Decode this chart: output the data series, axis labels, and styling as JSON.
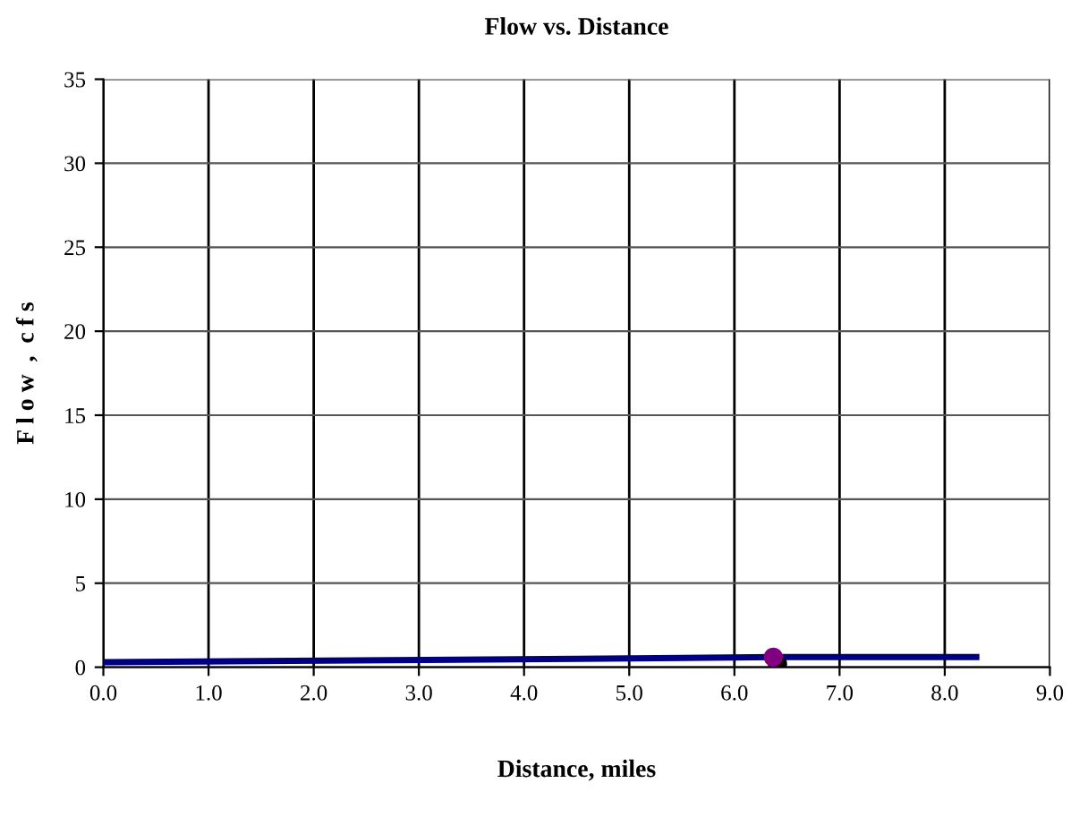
{
  "chart_data": {
    "type": "line",
    "title": "Flow vs. Distance",
    "xlabel": "Distance, miles",
    "ylabel": "F l o w  ,  c f s",
    "xlim": [
      0,
      9
    ],
    "ylim": [
      0,
      35
    ],
    "xticks": [
      {
        "value": 0,
        "label": "0.0"
      },
      {
        "value": 1,
        "label": "1.0"
      },
      {
        "value": 2,
        "label": "2.0"
      },
      {
        "value": 3,
        "label": "3.0"
      },
      {
        "value": 4,
        "label": "4.0"
      },
      {
        "value": 5,
        "label": "5.0"
      },
      {
        "value": 6,
        "label": "6.0"
      },
      {
        "value": 7,
        "label": "7.0"
      },
      {
        "value": 8,
        "label": "8.0"
      },
      {
        "value": 9,
        "label": "9.0"
      }
    ],
    "yticks": [
      0,
      5,
      10,
      15,
      20,
      25,
      30,
      35
    ],
    "grid": true,
    "legend": false,
    "series": [
      {
        "color": "#000080",
        "x": [
          0,
          2.4,
          4.5,
          6.4,
          8.3
        ],
        "values": [
          0.3,
          0.4,
          0.5,
          0.6,
          0.6
        ],
        "marker": "none",
        "line_style": "solid"
      },
      {
        "type": "scatter",
        "color": "#000000",
        "x": [
          6.41
        ],
        "values": [
          0.2
        ],
        "marker": "circle"
      },
      {
        "type": "scatter",
        "color": "#800080",
        "x": [
          6.37
        ],
        "values": [
          0.6
        ],
        "marker": "circle"
      }
    ]
  }
}
